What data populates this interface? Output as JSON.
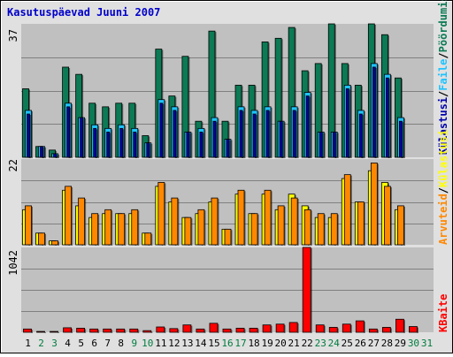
{
  "title": "Kasutuspäevad Juuni 2007",
  "colors": {
    "frame_bg": "#e0e0e0",
    "plot_bg": "#c0c0c0",
    "title": "#0000cc",
    "pageviews": "#0b7a55",
    "files": "#1ec3ff",
    "hits": "#0000aa",
    "visits": "#ff8800",
    "sites": "#ffff00",
    "kbytes": "#ff0000",
    "day_weekday": "#000000",
    "day_weekend": "#007c3e"
  },
  "chart_data": [
    {
      "type": "bar",
      "panel": "top",
      "ymax_label": "37",
      "ylim": [
        0,
        37
      ],
      "legend": {
        "sep": "/",
        "pageviews": "Pöördumisi",
        "files": "Faile",
        "hits": "Külastusi"
      },
      "categories": [
        "1",
        "2",
        "3",
        "4",
        "5",
        "6",
        "7",
        "8",
        "9",
        "10",
        "11",
        "12",
        "13",
        "14",
        "15",
        "16",
        "17",
        "18",
        "19",
        "20",
        "21",
        "22",
        "23",
        "24",
        "25",
        "26",
        "27",
        "28",
        "29",
        "30",
        "31"
      ],
      "series": [
        {
          "name": "Pöördumisi",
          "values": [
            19,
            3,
            2,
            25,
            23,
            15,
            14,
            15,
            15,
            6,
            30,
            17,
            28,
            10,
            35,
            10,
            20,
            20,
            32,
            33,
            36,
            24,
            26,
            37,
            26,
            20,
            37,
            34,
            22,
            0,
            0
          ]
        },
        {
          "name": "Faile",
          "values": [
            13,
            3,
            1,
            15,
            11,
            9,
            8,
            9,
            8,
            4,
            16,
            14,
            7,
            8,
            11,
            5,
            14,
            13,
            14,
            10,
            14,
            18,
            7,
            7,
            20,
            13,
            26,
            23,
            11,
            0,
            0
          ]
        },
        {
          "name": "Külastusi",
          "values": [
            12,
            3,
            1,
            14,
            11,
            8,
            7,
            8,
            7,
            4,
            15,
            13,
            7,
            7,
            10,
            5,
            13,
            12,
            13,
            10,
            13,
            17,
            7,
            7,
            19,
            12,
            25,
            22,
            10,
            0,
            0
          ]
        }
      ]
    },
    {
      "type": "bar",
      "panel": "middle",
      "ymax_label": "22",
      "ylim": [
        0,
        22
      ],
      "legend": {
        "sep": "/",
        "visits": "Arvuteid",
        "sites": "Külastusi"
      },
      "series": [
        {
          "name": "Arvuteid",
          "values": [
            10,
            3,
            1,
            15,
            12,
            8,
            9,
            8,
            9,
            3,
            16,
            12,
            7,
            9,
            12,
            4,
            14,
            8,
            14,
            10,
            12,
            9,
            8,
            8,
            18,
            11,
            21,
            15,
            10,
            0,
            0
          ]
        },
        {
          "name": "Külastusi",
          "values": [
            9,
            3,
            1,
            14,
            10,
            7,
            8,
            8,
            8,
            3,
            15,
            11,
            7,
            8,
            11,
            4,
            13,
            8,
            13,
            9,
            13,
            10,
            7,
            7,
            17,
            11,
            19,
            16,
            9,
            0,
            0
          ]
        }
      ]
    },
    {
      "type": "bar",
      "panel": "bottom",
      "ymax_label": "1042",
      "ylim": [
        0,
        1042
      ],
      "legend": {
        "kbytes": "KBaite"
      },
      "series": [
        {
          "name": "KBaite",
          "values": [
            40,
            10,
            10,
            55,
            50,
            40,
            40,
            40,
            40,
            20,
            65,
            45,
            90,
            40,
            110,
            40,
            50,
            50,
            90,
            100,
            120,
            1042,
            90,
            60,
            100,
            140,
            40,
            60,
            160,
            70,
            0
          ]
        }
      ]
    }
  ]
}
